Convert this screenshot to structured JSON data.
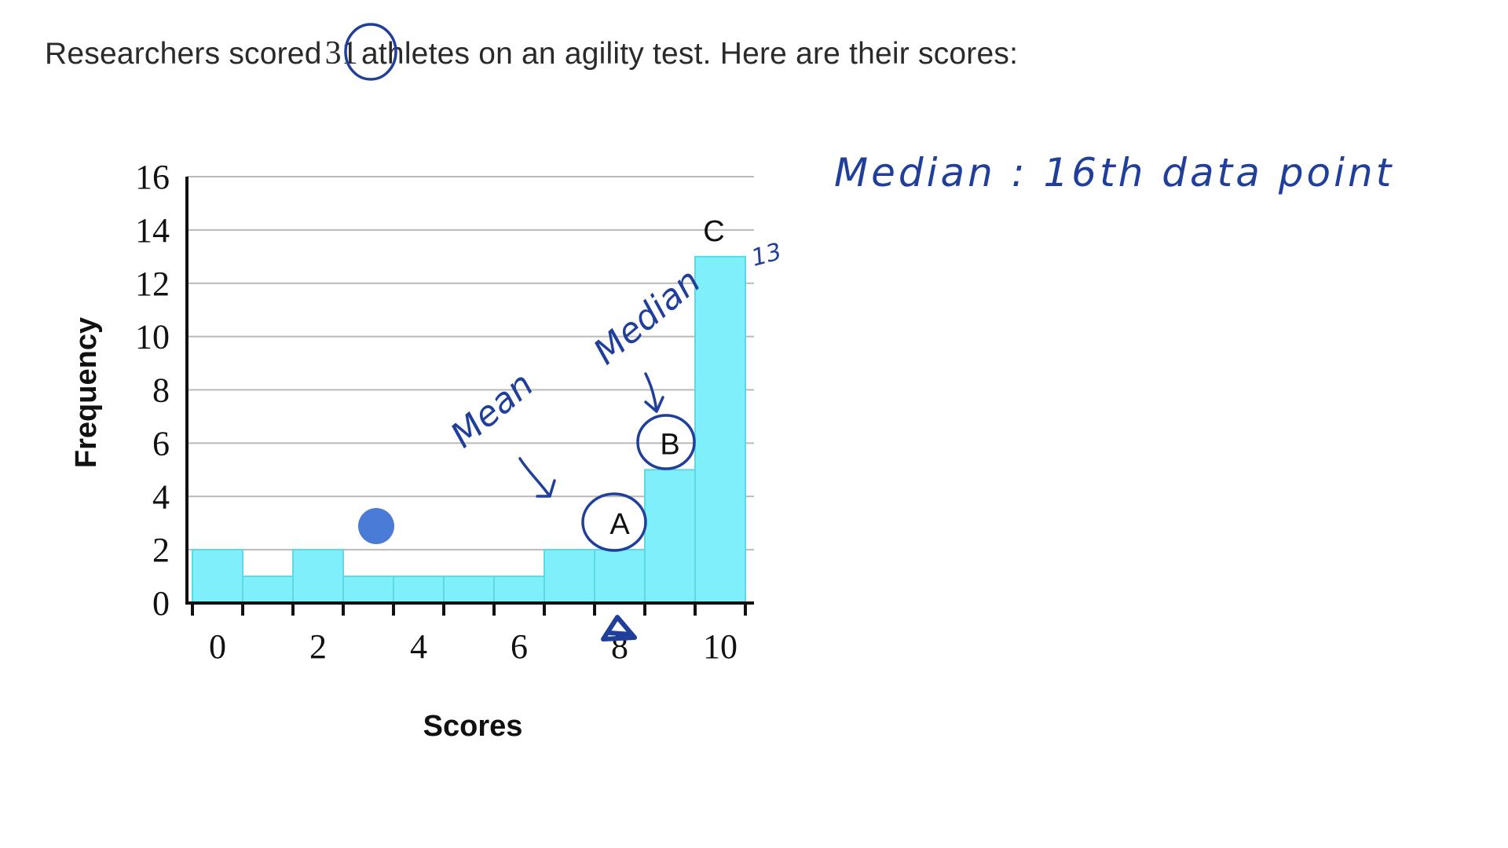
{
  "question": {
    "prefix": "Researchers scored",
    "count": "31",
    "suffix": "athletes on an agility test. Here are their scores:"
  },
  "chart_data": {
    "type": "bar",
    "title": "",
    "xlabel": "Scores",
    "ylabel": "Frequency",
    "categories": [
      "0",
      "1",
      "2",
      "3",
      "4",
      "5",
      "6",
      "7",
      "8",
      "9",
      "10"
    ],
    "values": [
      2,
      1,
      2,
      1,
      1,
      1,
      1,
      2,
      2,
      5,
      13
    ],
    "ylim": [
      0,
      16
    ],
    "yticks": [
      "0",
      "2",
      "4",
      "6",
      "8",
      "10",
      "12",
      "14",
      "16"
    ],
    "xtick_labels": [
      "0",
      "2",
      "4",
      "6",
      "8",
      "10"
    ],
    "grid": true,
    "bar_color": "#7ff0fb",
    "bar_edge_color": "#5fd8e6",
    "bar_labels": [
      {
        "text": "A",
        "category": "8"
      },
      {
        "text": "B",
        "category": "9"
      },
      {
        "text": "C",
        "category": "10"
      }
    ]
  },
  "annotations": {
    "median_note": "Median : 16th data point",
    "mean_label": "Mean",
    "median_label": "Median",
    "bar_top_value": "13",
    "ink_color": "#1f3f9a",
    "dot_color": "#4a7bd6"
  }
}
